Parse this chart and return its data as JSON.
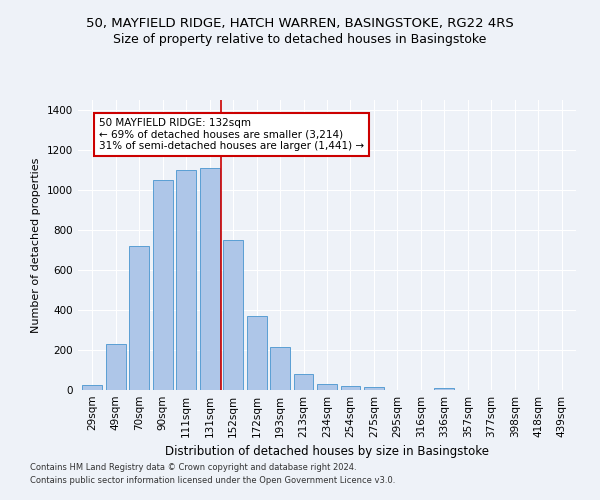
{
  "title1": "50, MAYFIELD RIDGE, HATCH WARREN, BASINGSTOKE, RG22 4RS",
  "title2": "Size of property relative to detached houses in Basingstoke",
  "xlabel": "Distribution of detached houses by size in Basingstoke",
  "ylabel": "Number of detached properties",
  "footnote1": "Contains HM Land Registry data © Crown copyright and database right 2024.",
  "footnote2": "Contains public sector information licensed under the Open Government Licence v3.0.",
  "categories": [
    "29sqm",
    "49sqm",
    "70sqm",
    "90sqm",
    "111sqm",
    "131sqm",
    "152sqm",
    "172sqm",
    "193sqm",
    "213sqm",
    "234sqm",
    "254sqm",
    "275sqm",
    "295sqm",
    "316sqm",
    "336sqm",
    "357sqm",
    "377sqm",
    "398sqm",
    "418sqm",
    "439sqm"
  ],
  "values": [
    25,
    230,
    720,
    1050,
    1100,
    1110,
    750,
    370,
    215,
    80,
    30,
    20,
    15,
    0,
    0,
    10,
    0,
    0,
    0,
    0,
    0
  ],
  "bar_color": "#aec6e8",
  "bar_edge_color": "#5a9fd4",
  "red_line_x": 5.5,
  "annotation_text": "50 MAYFIELD RIDGE: 132sqm\n← 69% of detached houses are smaller (3,214)\n31% of semi-detached houses are larger (1,441) →",
  "annotation_box_color": "#ffffff",
  "annotation_border_color": "#cc0000",
  "ylim": [
    0,
    1450
  ],
  "yticks": [
    0,
    200,
    400,
    600,
    800,
    1000,
    1200,
    1400
  ],
  "background_color": "#eef2f8",
  "plot_bg_color": "#eef2f8",
  "title1_fontsize": 9.5,
  "title2_fontsize": 9,
  "xlabel_fontsize": 8.5,
  "ylabel_fontsize": 8,
  "tick_fontsize": 7.5,
  "annotation_fontsize": 7.5,
  "footnote_fontsize": 6
}
